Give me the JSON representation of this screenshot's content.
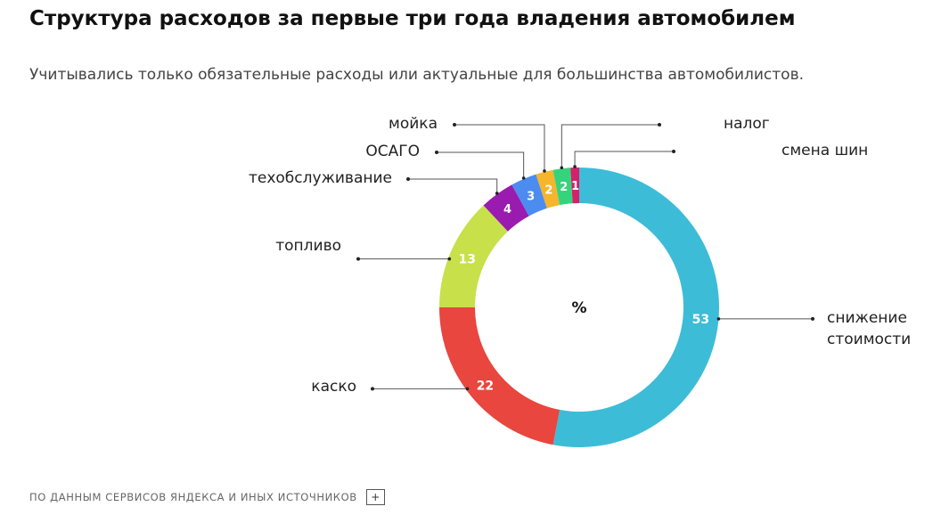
{
  "title": "Структура расходов за первые три года владения автомобилем",
  "subtitle": "Учитывались только обязательные расходы или актуальные для большинства автомобилистов.",
  "source": {
    "text": "ПО ДАННЫМ СЕРВИСОВ ЯНДЕКСА И ИНЫХ ИСТОЧНИКОВ",
    "button_label": "+"
  },
  "chart_data": {
    "type": "pie",
    "variant": "donut",
    "center_label": "%",
    "start": "top",
    "direction": "clockwise",
    "slices": [
      {
        "label": "снижение стоимости",
        "value": 53,
        "color": "#3DBCD8"
      },
      {
        "label": "каско",
        "value": 22,
        "color": "#E8463E"
      },
      {
        "label": "топливо",
        "value": 13,
        "color": "#C8E04A"
      },
      {
        "label": "техобслуживание",
        "value": 4,
        "color": "#9A1BAF"
      },
      {
        "label": "ОСАГО",
        "value": 3,
        "color": "#4C8CF0"
      },
      {
        "label": "мойка",
        "value": 2,
        "color": "#F5B52C"
      },
      {
        "label": "налог",
        "value": 2,
        "color": "#35D47C"
      },
      {
        "label": "смена шин",
        "value": 1,
        "color": "#D6206A"
      }
    ]
  }
}
